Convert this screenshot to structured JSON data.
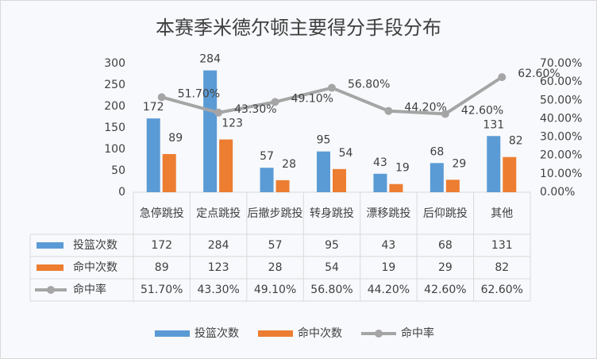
{
  "chart_data": {
    "type": "bar-line-table",
    "title": "本赛季米德尔顿主要得分手段分布",
    "categories": [
      "急停跳投",
      "定点跳投",
      "后撤步跳投",
      "转身跳投",
      "漂移跳投",
      "后仰跳投",
      "其他"
    ],
    "series": [
      {
        "name": "投篮次数",
        "type": "bar",
        "color": "#5b9bd5",
        "values": [
          172,
          284,
          57,
          95,
          43,
          68,
          131
        ]
      },
      {
        "name": "命中次数",
        "type": "bar",
        "color": "#ed7d31",
        "values": [
          89,
          123,
          28,
          54,
          19,
          29,
          82
        ]
      },
      {
        "name": "命中率",
        "type": "line",
        "axis": "y2",
        "color": "#a5a5a5",
        "values": [
          51.7,
          43.3,
          49.1,
          56.8,
          44.2,
          42.6,
          62.6
        ],
        "value_labels": [
          "51.70%",
          "43.30%",
          "49.10%",
          "56.80%",
          "44.20%",
          "42.60%",
          "62.60%"
        ]
      }
    ],
    "ylim": [
      0,
      300
    ],
    "yticks": [
      0,
      50,
      100,
      150,
      200,
      250,
      300
    ],
    "y2lim": [
      0,
      70
    ],
    "y2ticks": [
      {
        "value": 0,
        "label": "0.00%"
      },
      {
        "value": 10,
        "label": "10.00%"
      },
      {
        "value": 20,
        "label": "20.00%"
      },
      {
        "value": 30,
        "label": "30.00%"
      },
      {
        "value": 40,
        "label": "40.00%"
      },
      {
        "value": 50,
        "label": "50.00%"
      },
      {
        "value": 60,
        "label": "60.00%"
      },
      {
        "value": 70,
        "label": "70.00%"
      }
    ],
    "legend": "bottom",
    "grid": false
  }
}
